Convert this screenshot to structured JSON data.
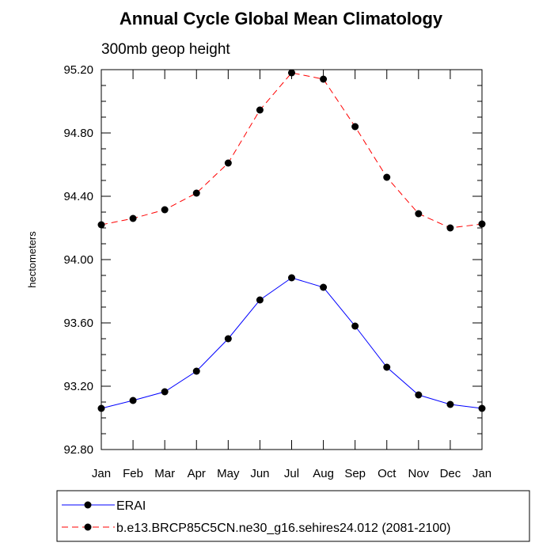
{
  "chart_data": {
    "type": "line",
    "title": "Annual Cycle Global Mean Climatology",
    "subtitle": "300mb geop height",
    "xlabel": "",
    "ylabel": "hectometers",
    "categories": [
      "Jan",
      "Feb",
      "Mar",
      "Apr",
      "May",
      "Jun",
      "Jul",
      "Aug",
      "Sep",
      "Oct",
      "Nov",
      "Dec",
      "Jan"
    ],
    "ylim": [
      92.8,
      95.2
    ],
    "yticks": [
      "92.80",
      "93.20",
      "93.60",
      "94.00",
      "94.40",
      "94.80",
      "95.20"
    ],
    "series": [
      {
        "name": "ERAI",
        "color": "#0000ff",
        "dash": "solid",
        "values": [
          93.06,
          93.11,
          93.165,
          93.295,
          93.5,
          93.745,
          93.885,
          93.825,
          93.58,
          93.32,
          93.145,
          93.085,
          93.06
        ]
      },
      {
        "name": "b.e13.BRCP85C5CN.ne30_g16.sehires24.012 (2081-2100)",
        "color": "#ff0000",
        "dash": "dashed",
        "values": [
          94.22,
          94.26,
          94.315,
          94.42,
          94.61,
          94.945,
          95.18,
          95.14,
          94.84,
          94.52,
          94.29,
          94.2,
          94.225
        ]
      }
    ]
  }
}
